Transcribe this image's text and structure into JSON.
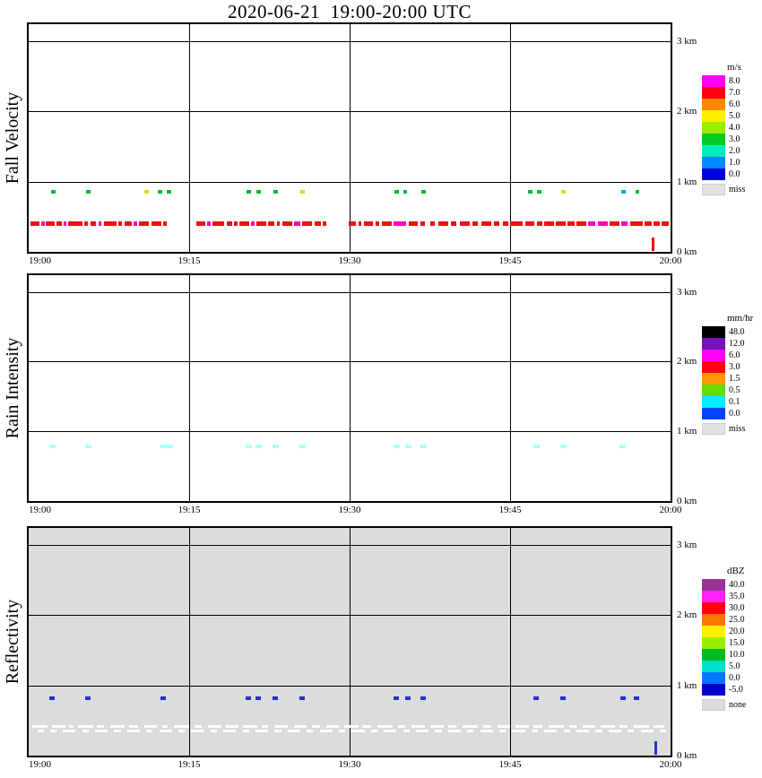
{
  "title": "2020-06-21  19:00-20:00 UTC",
  "palette": {
    "r": "#ee1111",
    "m": "#ff00bb",
    "g": "#00bb33",
    "y": "#bbee00",
    "t": "#00aaee",
    "c": "#aaffff",
    "b": "#2233cc",
    "w": "#ffffff"
  },
  "chart_data": [
    {
      "type": "heatmap",
      "title": "Fall Velocity",
      "background": "#ffffff",
      "x_range_minutes": [
        0,
        60
      ],
      "x_grid_minutes": [
        15,
        30,
        45
      ],
      "x_ticks": [
        {
          "label": "19:00",
          "t": 0
        },
        {
          "label": "19:15",
          "t": 15
        },
        {
          "label": "19:30",
          "t": 30
        },
        {
          "label": "19:45",
          "t": 45
        },
        {
          "label": "20:00",
          "t": 60
        }
      ],
      "y_max_km": 3.24,
      "y_grid_km": [
        1,
        2,
        3
      ],
      "y_ticks": [
        {
          "label": "3 km",
          "km": 3
        },
        {
          "label": "2 km",
          "km": 2
        },
        {
          "label": "1 km",
          "km": 1
        },
        {
          "label": "0 km",
          "km": 0
        }
      ],
      "legend": {
        "title": "m/s",
        "entries": [
          {
            "label": "8.0",
            "color": "#ff00ff"
          },
          {
            "label": "7.0",
            "color": "#ff0011"
          },
          {
            "label": "6.0",
            "color": "#ff8800"
          },
          {
            "label": "5.0",
            "color": "#ffee00"
          },
          {
            "label": "4.0",
            "color": "#99ee00"
          },
          {
            "label": "3.0",
            "color": "#00cc22"
          },
          {
            "label": "2.0",
            "color": "#00eebb"
          },
          {
            "label": "1.0",
            "color": "#0088ff"
          },
          {
            "label": "0.0",
            "color": "#0000dd"
          }
        ],
        "missing": {
          "label": "miss",
          "color": "#e2e2e2"
        }
      },
      "bands": [
        {
          "h": 0.4,
          "hp": 5,
          "ck": "r",
          "segs": [
            [
              0.2,
              1.0
            ],
            [
              1.2,
              1.5,
              "m"
            ],
            [
              1.6,
              2.4
            ],
            [
              2.6,
              3.1
            ],
            [
              3.3,
              3.5,
              "m"
            ],
            [
              3.7,
              5.0
            ],
            [
              5.2,
              5.5
            ],
            [
              5.8,
              6.3
            ],
            [
              6.5,
              6.8,
              "m"
            ],
            [
              7.0,
              8.2
            ],
            [
              8.4,
              8.7
            ],
            [
              9.0,
              9.6
            ],
            [
              9.8,
              10.1,
              "m"
            ],
            [
              10.3,
              11.2
            ],
            [
              11.5,
              12.4
            ],
            [
              12.6,
              12.9
            ],
            [
              15.7,
              16.5
            ],
            [
              16.7,
              17.0,
              "m"
            ],
            [
              17.2,
              18.3
            ],
            [
              18.5,
              19.0
            ],
            [
              19.2,
              19.5
            ],
            [
              19.7,
              20.6
            ],
            [
              20.8,
              21.1,
              "m"
            ],
            [
              21.3,
              22.2
            ],
            [
              22.4,
              23.0
            ],
            [
              23.2,
              23.5
            ],
            [
              23.7,
              24.6
            ],
            [
              24.8,
              25.4,
              "m"
            ],
            [
              25.6,
              26.5
            ],
            [
              26.7,
              27.3
            ],
            [
              27.5,
              27.8
            ],
            [
              29.9,
              30.6
            ],
            [
              30.8,
              31.1
            ],
            [
              31.3,
              32.2
            ],
            [
              32.4,
              32.8
            ],
            [
              33.0,
              33.9
            ],
            [
              34.1,
              35.3,
              "m"
            ],
            [
              35.5,
              36.4
            ],
            [
              36.6,
              37.0
            ],
            [
              37.5,
              38.0
            ],
            [
              38.3,
              39.2
            ],
            [
              39.5,
              40.0
            ],
            [
              40.3,
              41.2
            ],
            [
              41.5,
              42.0
            ],
            [
              42.3,
              43.2
            ],
            [
              43.5,
              44.0
            ],
            [
              44.3,
              44.8
            ],
            [
              45.0,
              46.2
            ],
            [
              46.4,
              47.3
            ],
            [
              47.5,
              48.0
            ],
            [
              48.2,
              49.1
            ],
            [
              49.3,
              50.2
            ],
            [
              50.4,
              51.0
            ],
            [
              51.2,
              52.1
            ],
            [
              52.3,
              53.0,
              "m"
            ],
            [
              53.2,
              54.1,
              "m"
            ],
            [
              54.3,
              55.2
            ],
            [
              55.4,
              56.0,
              "m"
            ],
            [
              56.2,
              57.4
            ],
            [
              57.6,
              58.2
            ],
            [
              58.4,
              59.0
            ],
            [
              59.2,
              59.8
            ]
          ]
        }
      ],
      "dots": [
        {
          "h": 0.85,
          "w": 0.4,
          "ck": "g",
          "pts": [
            [
              2.1,
              "g"
            ],
            [
              5.4,
              "g"
            ],
            [
              10.8,
              "y"
            ],
            [
              12.1,
              "g"
            ],
            [
              12.9,
              "g"
            ],
            [
              20.4,
              "g"
            ],
            [
              21.3,
              "g"
            ],
            [
              22.9,
              "g"
            ],
            [
              25.4,
              "y"
            ],
            [
              34.2,
              "g"
            ],
            [
              35.0,
              "g"
            ],
            [
              36.7,
              "g"
            ],
            [
              46.7,
              "g"
            ],
            [
              47.5,
              "g"
            ],
            [
              49.8,
              "y"
            ],
            [
              55.4,
              "t"
            ],
            [
              56.7,
              "g"
            ]
          ]
        }
      ],
      "vticks": [
        [
          58.3,
          "r"
        ]
      ]
    },
    {
      "type": "heatmap",
      "title": "Rain Intensity",
      "background": "#ffffff",
      "x_range_minutes": [
        0,
        60
      ],
      "x_grid_minutes": [
        15,
        30,
        45
      ],
      "x_ticks": [
        {
          "label": "19:00",
          "t": 0
        },
        {
          "label": "19:15",
          "t": 15
        },
        {
          "label": "19:30",
          "t": 30
        },
        {
          "label": "19:45",
          "t": 45
        },
        {
          "label": "20:00",
          "t": 60
        }
      ],
      "y_max_km": 3.24,
      "y_grid_km": [
        1,
        2,
        3
      ],
      "y_ticks": [
        {
          "label": "3 km",
          "km": 3
        },
        {
          "label": "2 km",
          "km": 2
        },
        {
          "label": "1 km",
          "km": 1
        },
        {
          "label": "0 km",
          "km": 0
        }
      ],
      "legend": {
        "title": "mm/hr",
        "entries": [
          {
            "label": "48.0",
            "color": "#000000"
          },
          {
            "label": "12.0",
            "color": "#7711bb"
          },
          {
            "label": "6.0",
            "color": "#ff00ff"
          },
          {
            "label": "3.0",
            "color": "#ff0011"
          },
          {
            "label": "1.5",
            "color": "#ff9900"
          },
          {
            "label": "0.5",
            "color": "#66dd00"
          },
          {
            "label": "0.1",
            "color": "#00eeff"
          },
          {
            "label": "0.0",
            "color": "#0044ff"
          }
        ],
        "missing": {
          "label": "miss",
          "color": "#e2e2e2"
        }
      },
      "bands": [],
      "dots": [
        {
          "h": 0.78,
          "w": 0.6,
          "ck": "c",
          "pts": [
            [
              1.9,
              "c"
            ],
            [
              5.3,
              "c"
            ],
            [
              12.3,
              "c"
            ],
            [
              12.9,
              "c"
            ],
            [
              20.3,
              "c"
            ],
            [
              21.2,
              "c"
            ],
            [
              22.8,
              "c"
            ],
            [
              25.3,
              "c"
            ],
            [
              34.1,
              "c"
            ],
            [
              35.2,
              "c"
            ],
            [
              36.6,
              "c"
            ],
            [
              47.2,
              "c"
            ],
            [
              49.7,
              "c"
            ],
            [
              55.2,
              "c"
            ]
          ]
        }
      ],
      "vticks": []
    },
    {
      "type": "heatmap",
      "title": "Reflectivity",
      "background": "#dcdcdc",
      "x_range_minutes": [
        0,
        60
      ],
      "x_grid_minutes": [
        15,
        30,
        45
      ],
      "x_ticks": [
        {
          "label": "19:00",
          "t": 0
        },
        {
          "label": "19:15",
          "t": 15
        },
        {
          "label": "19:30",
          "t": 30
        },
        {
          "label": "19:45",
          "t": 45
        },
        {
          "label": "20:00",
          "t": 60
        }
      ],
      "y_max_km": 3.24,
      "y_grid_km": [
        1,
        2,
        3
      ],
      "y_ticks": [
        {
          "label": "3 km",
          "km": 3
        },
        {
          "label": "2 km",
          "km": 2
        },
        {
          "label": "1 km",
          "km": 1
        },
        {
          "label": "0 km",
          "km": 0
        }
      ],
      "legend": {
        "title": "dBZ",
        "entries": [
          {
            "label": "40.0",
            "color": "#993399"
          },
          {
            "label": "35.0",
            "color": "#ff22ff"
          },
          {
            "label": "30.0",
            "color": "#ff0011"
          },
          {
            "label": "25.0",
            "color": "#ff7700"
          },
          {
            "label": "20.0",
            "color": "#ffee00"
          },
          {
            "label": "15.0",
            "color": "#99ee00"
          },
          {
            "label": "10.0",
            "color": "#00bb22"
          },
          {
            "label": "5.0",
            "color": "#00ddcc"
          },
          {
            "label": "0.0",
            "color": "#0077ff"
          },
          {
            "label": "-5.0",
            "color": "#0000cc"
          }
        ],
        "missing": {
          "label": "none",
          "color": "#dcdcdc"
        }
      },
      "bands": [
        {
          "h": 0.42,
          "hp": 3,
          "ck": "w",
          "segs": [
            [
              0.3,
              1.8
            ],
            [
              2.2,
              3.4
            ],
            [
              3.8,
              4.2
            ],
            [
              4.6,
              6.0
            ],
            [
              6.4,
              7.0
            ],
            [
              7.6,
              9.0
            ],
            [
              9.4,
              10.2
            ],
            [
              10.8,
              12.0
            ],
            [
              12.5,
              13.0
            ],
            [
              13.6,
              15.0
            ],
            [
              15.5,
              16.2
            ],
            [
              16.8,
              18.0
            ],
            [
              18.4,
              19.6
            ],
            [
              20.0,
              21.4
            ],
            [
              21.8,
              22.4
            ],
            [
              23.0,
              24.2
            ],
            [
              24.8,
              26.0
            ],
            [
              26.5,
              27.2
            ],
            [
              27.8,
              29.0
            ],
            [
              29.5,
              30.8
            ],
            [
              31.2,
              32.0
            ],
            [
              32.6,
              34.0
            ],
            [
              34.5,
              35.2
            ],
            [
              35.8,
              37.0
            ],
            [
              37.5,
              38.8
            ],
            [
              39.2,
              40.0
            ],
            [
              40.6,
              42.0
            ],
            [
              42.5,
              43.2
            ],
            [
              43.8,
              45.0
            ],
            [
              45.5,
              46.8
            ],
            [
              47.2,
              48.0
            ],
            [
              48.6,
              50.0
            ],
            [
              50.5,
              51.2
            ],
            [
              51.8,
              53.0
            ],
            [
              53.5,
              54.8
            ],
            [
              55.2,
              56.0
            ],
            [
              56.6,
              58.0
            ],
            [
              58.4,
              59.4
            ]
          ]
        },
        {
          "h": 0.35,
          "hp": 3,
          "ck": "w",
          "segs": [
            [
              0.8,
              1.4
            ],
            [
              2.0,
              2.6
            ],
            [
              3.2,
              4.4
            ],
            [
              5.0,
              5.6
            ],
            [
              6.2,
              7.4
            ],
            [
              8.0,
              8.6
            ],
            [
              9.2,
              10.4
            ],
            [
              11.0,
              11.6
            ],
            [
              12.2,
              13.4
            ],
            [
              14.0,
              14.6
            ],
            [
              15.2,
              16.4
            ],
            [
              17.0,
              17.6
            ],
            [
              18.2,
              19.4
            ],
            [
              20.0,
              20.6
            ],
            [
              21.2,
              22.4
            ],
            [
              23.0,
              23.6
            ],
            [
              24.2,
              25.4
            ],
            [
              26.0,
              26.6
            ],
            [
              27.2,
              28.4
            ],
            [
              29.0,
              29.6
            ],
            [
              30.2,
              31.4
            ],
            [
              32.0,
              32.6
            ],
            [
              33.2,
              34.4
            ],
            [
              35.0,
              35.6
            ],
            [
              36.2,
              37.4
            ],
            [
              38.0,
              38.6
            ],
            [
              39.2,
              40.4
            ],
            [
              41.0,
              41.6
            ],
            [
              42.2,
              43.4
            ],
            [
              44.0,
              44.6
            ],
            [
              45.2,
              46.4
            ],
            [
              47.0,
              47.6
            ],
            [
              48.2,
              49.4
            ],
            [
              50.0,
              50.6
            ],
            [
              51.2,
              52.4
            ],
            [
              53.0,
              53.6
            ],
            [
              54.2,
              55.4
            ],
            [
              56.0,
              56.6
            ],
            [
              57.2,
              58.4
            ],
            [
              59.0,
              59.6
            ]
          ]
        }
      ],
      "dots": [
        {
          "h": 0.82,
          "w": 0.5,
          "ck": "b",
          "pts": [
            [
              1.9,
              "b"
            ],
            [
              5.3,
              "b"
            ],
            [
              12.3,
              "b"
            ],
            [
              20.3,
              "b"
            ],
            [
              21.2,
              "b"
            ],
            [
              22.8,
              "b"
            ],
            [
              25.3,
              "b"
            ],
            [
              34.1,
              "b"
            ],
            [
              35.2,
              "b"
            ],
            [
              36.6,
              "b"
            ],
            [
              47.2,
              "b"
            ],
            [
              49.7,
              "b"
            ],
            [
              55.3,
              "b"
            ],
            [
              56.6,
              "b"
            ]
          ]
        }
      ],
      "vticks": [
        [
          58.6,
          "b"
        ]
      ]
    }
  ]
}
